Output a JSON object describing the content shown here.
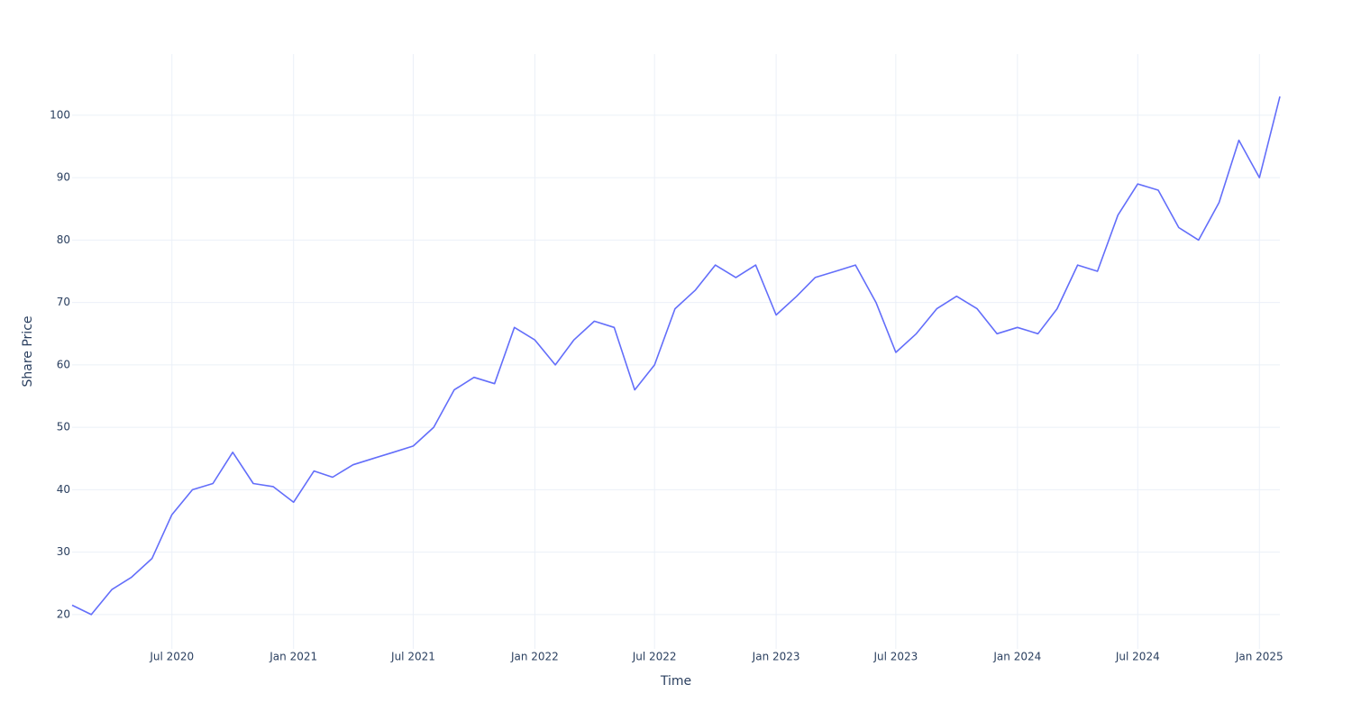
{
  "chart_data": {
    "type": "line",
    "x_label": "Time",
    "y_label": "Share Price",
    "x": [
      "2020-02",
      "2020-03",
      "2020-04",
      "2020-05",
      "2020-06",
      "2020-07",
      "2020-08",
      "2020-09",
      "2020-10",
      "2020-11",
      "2020-12",
      "2021-01",
      "2021-02",
      "2021-03",
      "2021-04",
      "2021-05",
      "2021-06",
      "2021-07",
      "2021-08",
      "2021-09",
      "2021-10",
      "2021-11",
      "2021-12",
      "2022-01",
      "2022-02",
      "2022-03",
      "2022-04",
      "2022-05",
      "2022-06",
      "2022-07",
      "2022-08",
      "2022-09",
      "2022-10",
      "2022-11",
      "2022-12",
      "2023-01",
      "2023-02",
      "2023-03",
      "2023-04",
      "2023-05",
      "2023-06",
      "2023-07",
      "2023-08",
      "2023-09",
      "2023-10",
      "2023-11",
      "2023-12",
      "2024-01",
      "2024-02",
      "2024-03",
      "2024-04",
      "2024-05",
      "2024-06",
      "2024-07",
      "2024-08",
      "2024-09",
      "2024-10",
      "2024-11",
      "2024-12",
      "2025-01",
      "2025-02"
    ],
    "values": [
      21.5,
      20,
      24,
      26,
      29,
      36,
      40,
      41,
      46,
      41,
      40.5,
      38,
      43,
      42,
      44,
      45,
      46,
      47,
      50,
      56,
      58,
      57,
      66,
      64,
      60,
      64,
      67,
      66,
      56,
      60,
      69,
      72,
      76,
      74,
      76,
      68,
      71,
      74,
      75,
      76,
      70,
      62,
      65,
      69,
      71,
      69,
      65,
      66,
      65,
      69,
      76,
      75,
      84,
      89,
      88,
      82,
      80,
      86,
      96,
      90,
      103
    ],
    "color": "#636efa",
    "xlim": [
      "2020-02",
      "2025-02"
    ],
    "xticks": [
      {
        "value": "2020-07",
        "label": "Jul 2020"
      },
      {
        "value": "2021-01",
        "label": "Jan 2021"
      },
      {
        "value": "2021-07",
        "label": "Jul 2021"
      },
      {
        "value": "2022-01",
        "label": "Jan 2022"
      },
      {
        "value": "2022-07",
        "label": "Jul 2022"
      },
      {
        "value": "2023-01",
        "label": "Jan 2023"
      },
      {
        "value": "2023-07",
        "label": "Jul 2023"
      },
      {
        "value": "2024-01",
        "label": "Jan 2024"
      },
      {
        "value": "2024-07",
        "label": "Jul 2024"
      },
      {
        "value": "2025-01",
        "label": "Jan 2025"
      }
    ],
    "ylim": [
      14.5,
      109.8
    ],
    "yticks": [
      20,
      30,
      40,
      50,
      60,
      70,
      80,
      90,
      100
    ],
    "grid": true
  }
}
